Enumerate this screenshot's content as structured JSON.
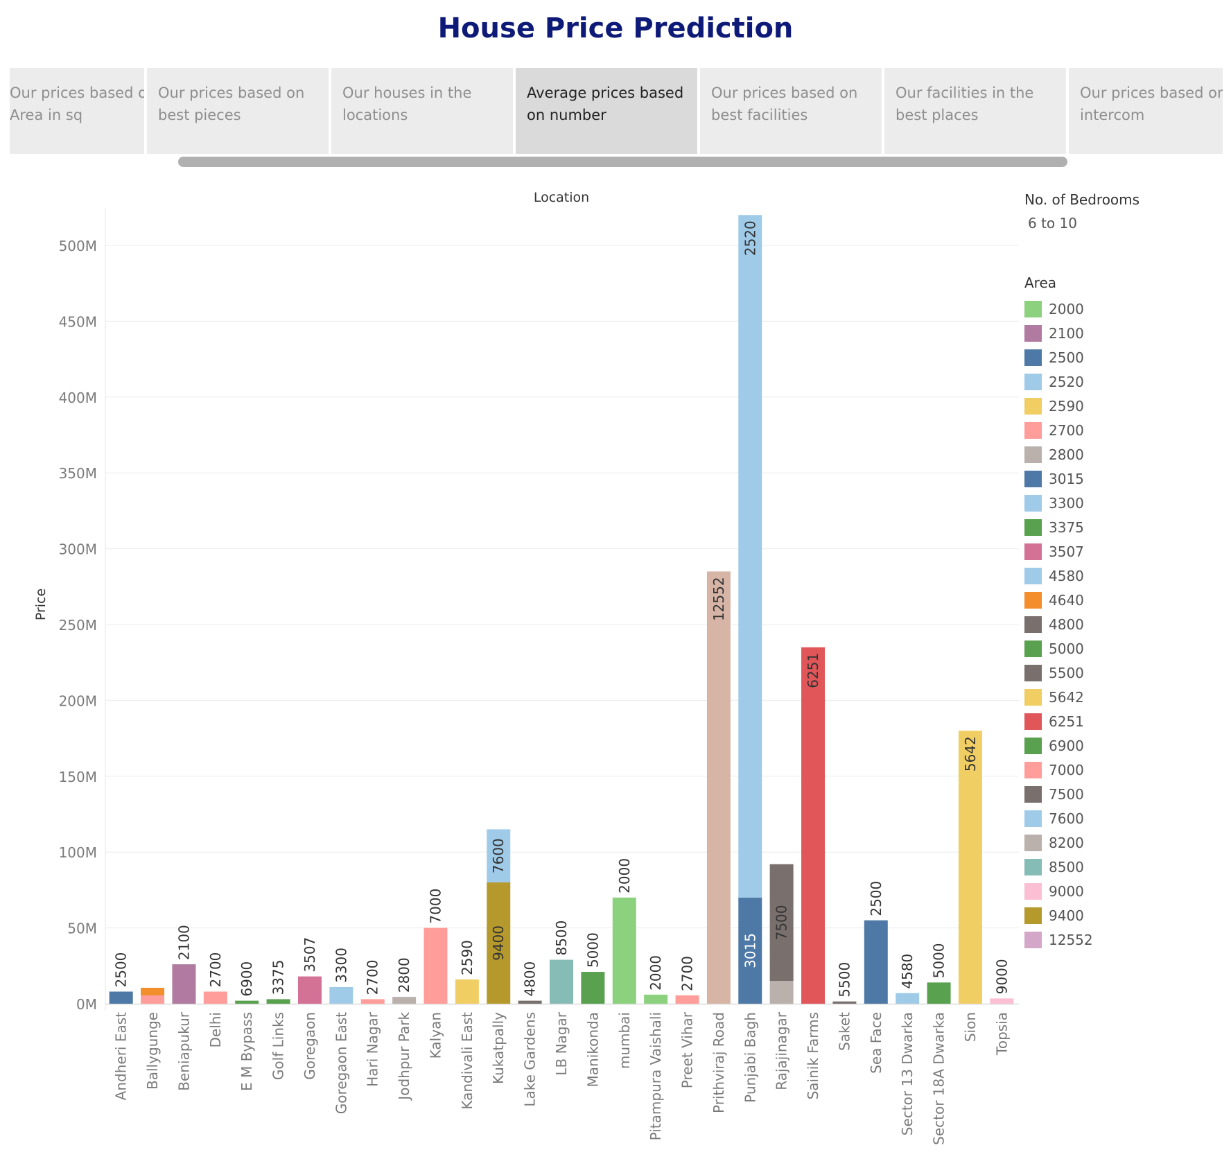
{
  "title": "House Price Prediction",
  "tabs": [
    {
      "label": "Our prices based on Area in sq",
      "active": false
    },
    {
      "label": "Our prices based on best pieces",
      "active": false
    },
    {
      "label": "Our houses in the locations",
      "active": false
    },
    {
      "label": "Average prices based on number",
      "active": true
    },
    {
      "label": "Our prices based on best facilities",
      "active": false
    },
    {
      "label": "Our facilities in the best places",
      "active": false
    },
    {
      "label": "Our prices based on intercom",
      "active": false
    }
  ],
  "legend": {
    "bedrooms_title": "No. of Bedrooms",
    "bedrooms_value": "6 to 10",
    "area_title": "Area",
    "items": [
      {
        "label": "2000",
        "color": "#8cd17d"
      },
      {
        "label": "2100",
        "color": "#b07aa1"
      },
      {
        "label": "2500",
        "color": "#4e79a7"
      },
      {
        "label": "2520",
        "color": "#a0cbe8"
      },
      {
        "label": "2590",
        "color": "#f1ce63"
      },
      {
        "label": "2700",
        "color": "#ff9d9a"
      },
      {
        "label": "2800",
        "color": "#bab0ac"
      },
      {
        "label": "3015",
        "color": "#4e79a7"
      },
      {
        "label": "3300",
        "color": "#a0cbe8"
      },
      {
        "label": "3375",
        "color": "#59a14f"
      },
      {
        "label": "3507",
        "color": "#d37295"
      },
      {
        "label": "4580",
        "color": "#a0cbe8"
      },
      {
        "label": "4640",
        "color": "#f28e2b"
      },
      {
        "label": "4800",
        "color": "#79706e"
      },
      {
        "label": "5000",
        "color": "#59a14f"
      },
      {
        "label": "5500",
        "color": "#79706e"
      },
      {
        "label": "5642",
        "color": "#f1ce63"
      },
      {
        "label": "6251",
        "color": "#e15759"
      },
      {
        "label": "6900",
        "color": "#59a14f"
      },
      {
        "label": "7000",
        "color": "#ff9d9a"
      },
      {
        "label": "7500",
        "color": "#79706e"
      },
      {
        "label": "7600",
        "color": "#a0cbe8"
      },
      {
        "label": "8200",
        "color": "#bab0ac"
      },
      {
        "label": "8500",
        "color": "#86bcb6"
      },
      {
        "label": "9000",
        "color": "#fabfd2"
      },
      {
        "label": "9400",
        "color": "#b6992d"
      },
      {
        "label": "12552",
        "color": "#d4a6c8"
      }
    ]
  },
  "chart_data": {
    "type": "bar",
    "stacked": true,
    "title": "",
    "xlabel": "Location",
    "ylabel": "Price",
    "ylim": [
      0,
      545000000
    ],
    "yticks": [
      0,
      50000000,
      100000000,
      150000000,
      200000000,
      250000000,
      300000000,
      350000000,
      400000000,
      450000000,
      500000000
    ],
    "ytick_labels": [
      "0M",
      "50M",
      "100M",
      "150M",
      "200M",
      "250M",
      "300M",
      "350M",
      "400M",
      "450M",
      "500M"
    ],
    "grid": true,
    "legend_position": "right",
    "categories": [
      "Andheri East",
      "Ballygunge",
      "Beniapukur",
      "Delhi",
      "E M Bypass",
      "Golf Links",
      "Goregaon",
      "Goregaon East",
      "Hari Nagar",
      "Jodhpur Park",
      "Kalyan",
      "Kandivali East",
      "Kukatpally",
      "Lake Gardens",
      "LB Nagar",
      "Manikonda",
      "mumbai",
      "Pitampura Vaishali",
      "Preet Vihar",
      "Prithviraj Road",
      "Punjabi Bagh",
      "Rajajinagar",
      "Sainik Farms",
      "Saket",
      "Sea Face",
      "Sector 13 Dwarka",
      "Sector 18A Dwarka",
      "Sion",
      "Topsia"
    ],
    "bars": [
      [
        {
          "area": "2500",
          "value": 8000000,
          "color": "#4e79a7",
          "label": "2500"
        }
      ],
      [
        {
          "area": "7000",
          "value": 5500000,
          "color": "#ff9d9a",
          "label": ""
        },
        {
          "area": "4640",
          "value": 5000000,
          "color": "#f28e2b",
          "label": ""
        }
      ],
      [
        {
          "area": "2100",
          "value": 26000000,
          "color": "#b07aa1",
          "label": "2100"
        }
      ],
      [
        {
          "area": "2700",
          "value": 8000000,
          "color": "#ff9d9a",
          "label": "2700"
        }
      ],
      [
        {
          "area": "6900",
          "value": 2000000,
          "color": "#59a14f",
          "label": "6900"
        }
      ],
      [
        {
          "area": "3375",
          "value": 3000000,
          "color": "#59a14f",
          "label": "3375"
        }
      ],
      [
        {
          "area": "3507",
          "value": 18000000,
          "color": "#d37295",
          "label": "3507"
        }
      ],
      [
        {
          "area": "3300",
          "value": 11000000,
          "color": "#a0cbe8",
          "label": "3300"
        }
      ],
      [
        {
          "area": "2700",
          "value": 3000000,
          "color": "#ff9d9a",
          "label": "2700"
        }
      ],
      [
        {
          "area": "2800",
          "value": 4500000,
          "color": "#bab0ac",
          "label": "2800"
        }
      ],
      [
        {
          "area": "7000",
          "value": 50000000,
          "color": "#ff9d9a",
          "label": "7000"
        }
      ],
      [
        {
          "area": "2590",
          "value": 16000000,
          "color": "#f1ce63",
          "label": "2590"
        }
      ],
      [
        {
          "area": "9400",
          "value": 80000000,
          "color": "#b6992d",
          "label": "9400"
        },
        {
          "area": "7600",
          "value": 35000000,
          "color": "#a0cbe8",
          "label": "7600"
        }
      ],
      [
        {
          "area": "4800",
          "value": 2000000,
          "color": "#79706e",
          "label": "4800"
        }
      ],
      [
        {
          "area": "8500",
          "value": 29000000,
          "color": "#86bcb6",
          "label": "8500"
        }
      ],
      [
        {
          "area": "5000",
          "value": 21000000,
          "color": "#59a14f",
          "label": "5000"
        }
      ],
      [
        {
          "area": "2000",
          "value": 70000000,
          "color": "#8cd17d",
          "label": "2000"
        }
      ],
      [
        {
          "area": "2000",
          "value": 6000000,
          "color": "#8cd17d",
          "label": "2000"
        }
      ],
      [
        {
          "area": "2700",
          "value": 5500000,
          "color": "#ff9d9a",
          "label": "2700"
        }
      ],
      [
        {
          "area": "12552",
          "value": 285000000,
          "color": "#d7b5a6",
          "label": "12552"
        }
      ],
      [
        {
          "area": "3015",
          "value": 70000000,
          "color": "#4e79a7",
          "label": "3015"
        },
        {
          "area": "2520",
          "value": 450000000,
          "color": "#a0cbe8",
          "label": "2520"
        }
      ],
      [
        {
          "area": "8200",
          "value": 15000000,
          "color": "#bab0ac",
          "label": ""
        },
        {
          "area": "7500",
          "value": 77000000,
          "color": "#79706e",
          "label": "7500"
        }
      ],
      [
        {
          "area": "6251",
          "value": 235000000,
          "color": "#e15759",
          "label": "6251"
        }
      ],
      [
        {
          "area": "5500",
          "value": 1500000,
          "color": "#79706e",
          "label": "5500"
        }
      ],
      [
        {
          "area": "2500",
          "value": 55000000,
          "color": "#4e79a7",
          "label": "2500"
        }
      ],
      [
        {
          "area": "4580",
          "value": 7000000,
          "color": "#a0cbe8",
          "label": "4580"
        }
      ],
      [
        {
          "area": "5000",
          "value": 14000000,
          "color": "#59a14f",
          "label": "5000"
        }
      ],
      [
        {
          "area": "5642",
          "value": 180000000,
          "color": "#f1ce63",
          "label": "5642"
        }
      ],
      [
        {
          "area": "9000",
          "value": 3500000,
          "color": "#fabfd2",
          "label": "9000"
        }
      ]
    ]
  }
}
